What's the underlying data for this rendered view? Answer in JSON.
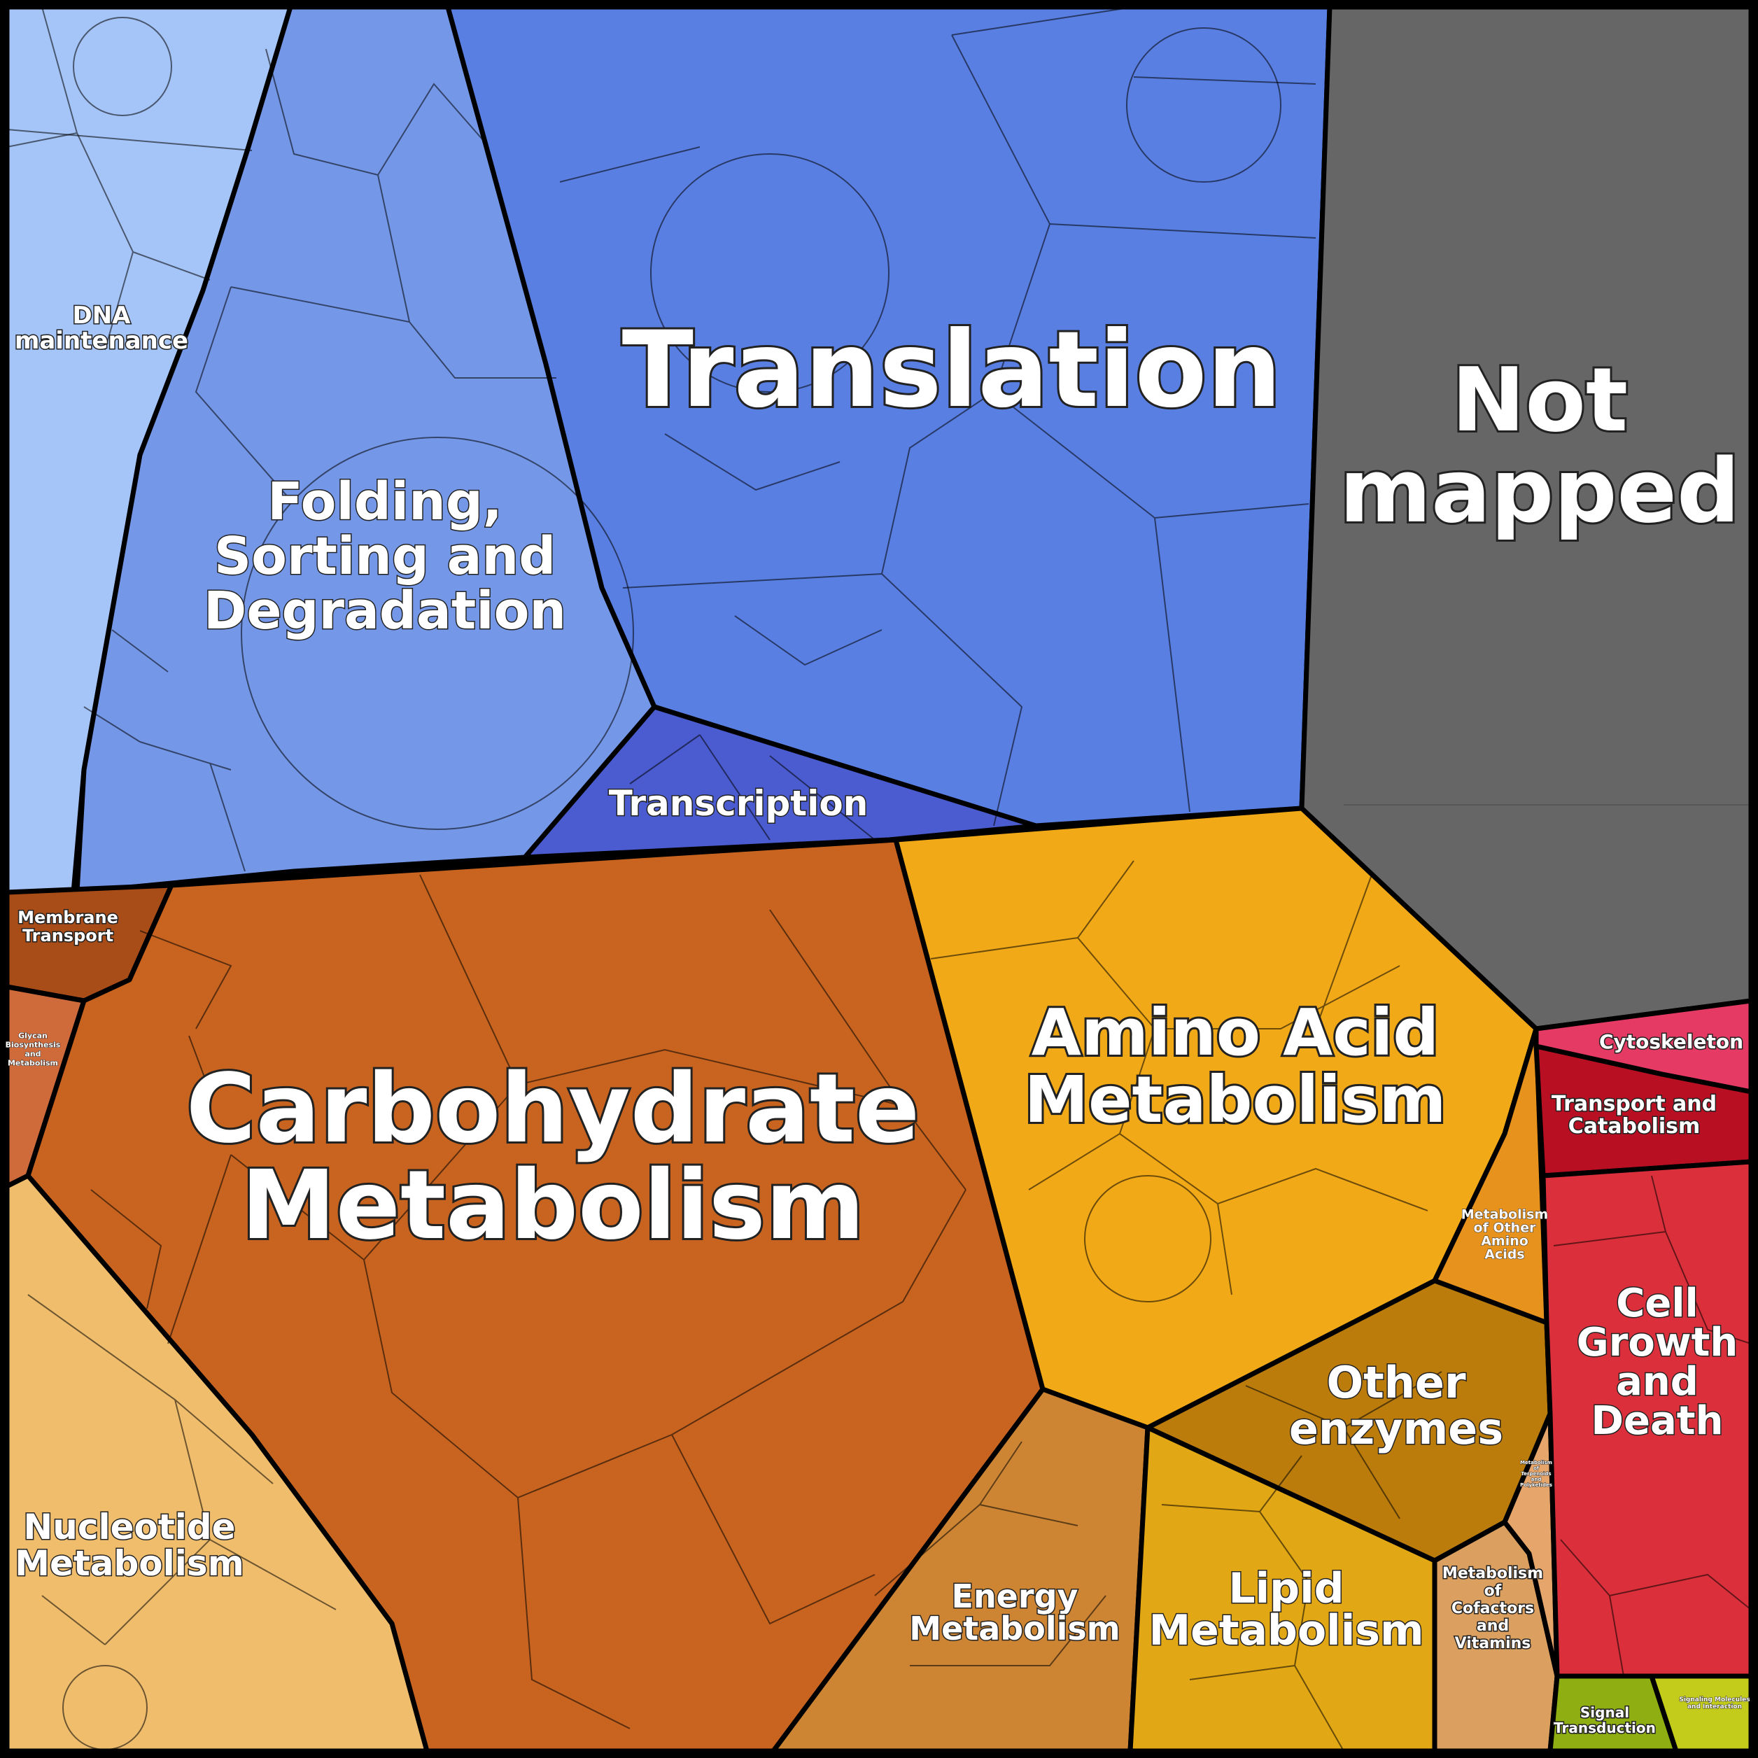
{
  "diagram": {
    "type": "voronoi-treemap",
    "categories": [
      {
        "id": "dna",
        "label_lines": [
          "DNA",
          "maintenance"
        ],
        "color": "#a5c4f7"
      },
      {
        "id": "folding",
        "label_lines": [
          "Folding,",
          "Sorting and",
          "Degradation"
        ],
        "color": "#7497e8"
      },
      {
        "id": "translation",
        "label_lines": [
          "Translation"
        ],
        "color": "#5a7fe3"
      },
      {
        "id": "transcription",
        "label_lines": [
          "Transcription"
        ],
        "color": "#4a5ccf"
      },
      {
        "id": "not_mapped",
        "label_lines": [
          "Not",
          "mapped"
        ],
        "color": "#666666"
      },
      {
        "id": "membrane",
        "label_lines": [
          "Membrane",
          "Transport"
        ],
        "color": "#a84c18"
      },
      {
        "id": "glycan",
        "label_lines": [
          "Glycan",
          "Biosynthesis",
          "and",
          "Metabolism"
        ],
        "color": "#cf6a3a"
      },
      {
        "id": "carbohydrate",
        "label_lines": [
          "Carbohydrate",
          "Metabolism"
        ],
        "color": "#c8641f"
      },
      {
        "id": "nucleotide",
        "label_lines": [
          "Nucleotide",
          "Metabolism"
        ],
        "color": "#efbd6c"
      },
      {
        "id": "amino",
        "label_lines": [
          "Amino Acid",
          "Metabolism"
        ],
        "color": "#f2a917"
      },
      {
        "id": "other_amino",
        "label_lines": [
          "Metabolism",
          "of Other",
          "Amino",
          "Acids"
        ],
        "color": "#e8921e"
      },
      {
        "id": "other_enzymes",
        "label_lines": [
          "Other",
          "enzymes"
        ],
        "color": "#bb7c0c"
      },
      {
        "id": "energy",
        "label_lines": [
          "Energy",
          "Metabolism"
        ],
        "color": "#cd8533"
      },
      {
        "id": "lipid",
        "label_lines": [
          "Lipid",
          "Metabolism"
        ],
        "color": "#e2a714"
      },
      {
        "id": "cofactors",
        "label_lines": [
          "Metabolism",
          "of",
          "Cofactors",
          "and",
          "Vitamins"
        ],
        "color": "#dba060"
      },
      {
        "id": "terpenoids",
        "label_lines": [
          "Metabolism",
          "of",
          "Terpenoids",
          "and",
          "Polyketides"
        ],
        "color": "#e6a56a"
      },
      {
        "id": "cytoskeleton",
        "label_lines": [
          "Cytoskeleton"
        ],
        "color": "#e53a63"
      },
      {
        "id": "transport_catabolism",
        "label_lines": [
          "Transport and",
          "Catabolism"
        ],
        "color": "#b80f22"
      },
      {
        "id": "cell_growth",
        "label_lines": [
          "Cell",
          "Growth",
          "and",
          "Death"
        ],
        "color": "#db303b"
      },
      {
        "id": "signal",
        "label_lines": [
          "Signal",
          "Transduction"
        ],
        "color": "#8eae12"
      },
      {
        "id": "signaling_molecules",
        "label_lines": [
          "Signaling Molecules",
          "and Interaction"
        ],
        "color": "#c3cc1b"
      }
    ]
  }
}
